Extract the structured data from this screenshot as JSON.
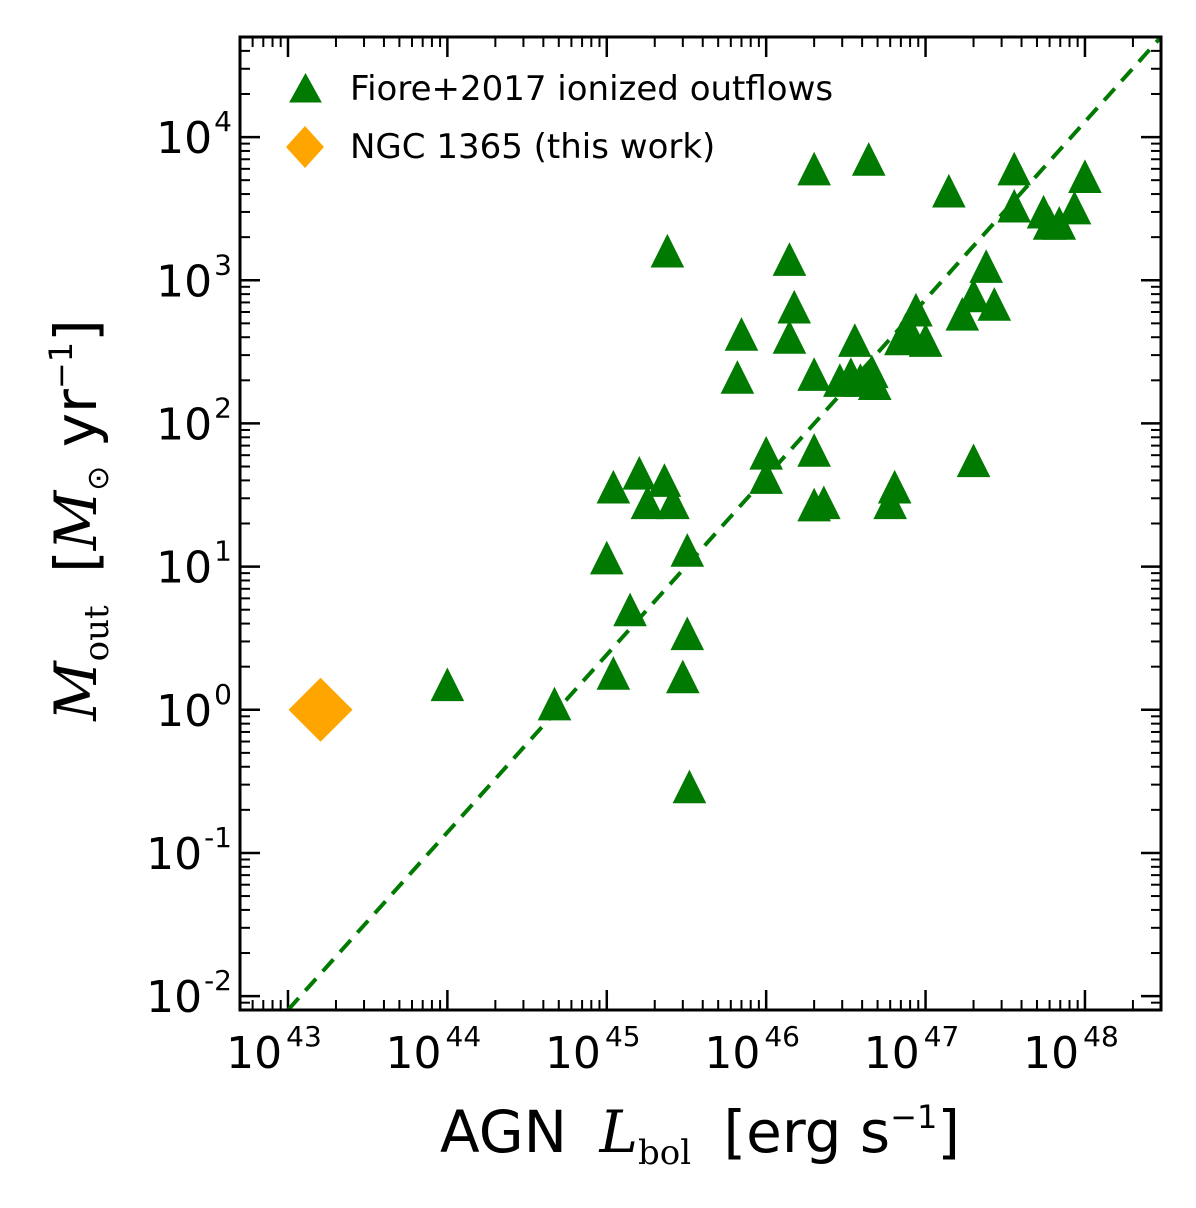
{
  "chart_data": {
    "type": "scatter",
    "xscale": "log",
    "yscale": "log",
    "xlim": [
      5e+42,
      3e+48
    ],
    "ylim": [
      0.008,
      50000
    ],
    "x_ticks": [
      {
        "base": "10",
        "exp": "43",
        "value": 1e+43
      },
      {
        "base": "10",
        "exp": "44",
        "value": 1e+44
      },
      {
        "base": "10",
        "exp": "45",
        "value": 1e+45
      },
      {
        "base": "10",
        "exp": "46",
        "value": 1e+46
      },
      {
        "base": "10",
        "exp": "47",
        "value": 1e+47
      },
      {
        "base": "10",
        "exp": "48",
        "value": 1e+48
      }
    ],
    "y_ticks": [
      {
        "base": "10",
        "exp": "-2",
        "value": 0.01
      },
      {
        "base": "10",
        "exp": "-1",
        "value": 0.1
      },
      {
        "base": "10",
        "exp": "0",
        "value": 1
      },
      {
        "base": "10",
        "exp": "1",
        "value": 10
      },
      {
        "base": "10",
        "exp": "2",
        "value": 100
      },
      {
        "base": "10",
        "exp": "3",
        "value": 1000
      },
      {
        "base": "10",
        "exp": "4",
        "value": 10000
      }
    ],
    "xlabel": {
      "prefix": "AGN",
      "sym": "L",
      "sub": "bol",
      "unit": "[erg s",
      "unit_exp": "−1",
      "close": "]"
    },
    "ylabel": {
      "sym": "M",
      "sub": "out",
      "unit_open": "[",
      "unit_sym": "M",
      "unit_sub": "⊙",
      "unit": " yr",
      "unit_exp": "−1",
      "close": "]"
    },
    "series": [
      {
        "name": "Fiore+2017 ionized outflows",
        "marker": "triangle",
        "color": "#007a00",
        "points": [
          [
            1e+44,
            1.5
          ],
          [
            4.7e+44,
            1.1
          ],
          [
            1.1e+45,
            1.8
          ],
          [
            1.4e+45,
            5.0
          ],
          [
            1e+45,
            11.5
          ],
          [
            1.1e+45,
            36
          ],
          [
            1.6e+45,
            45
          ],
          [
            1.8e+45,
            28
          ],
          [
            2.3e+45,
            40
          ],
          [
            2.6e+45,
            28
          ],
          [
            3.2e+45,
            13
          ],
          [
            3.2e+45,
            3.4
          ],
          [
            3e+45,
            1.7
          ],
          [
            3.3e+45,
            0.29
          ],
          [
            2.4e+45,
            1600
          ],
          [
            7e+45,
            420
          ],
          [
            6.6e+45,
            210
          ],
          [
            1e+46,
            62
          ],
          [
            1e+46,
            42
          ],
          [
            1.4e+46,
            1400
          ],
          [
            1.5e+46,
            650
          ],
          [
            1.4e+46,
            400
          ],
          [
            2e+46,
            6000
          ],
          [
            2e+46,
            220
          ],
          [
            2e+46,
            65
          ],
          [
            2e+46,
            27
          ],
          [
            2.3e+46,
            28
          ],
          [
            2.9e+46,
            200
          ],
          [
            3.4e+46,
            220
          ],
          [
            3.6e+46,
            380
          ],
          [
            3.9e+46,
            200
          ],
          [
            4.4e+46,
            7000
          ],
          [
            4.6e+46,
            230
          ],
          [
            4.8e+46,
            190
          ],
          [
            6e+46,
            28
          ],
          [
            6.4e+46,
            36
          ],
          [
            7e+46,
            390
          ],
          [
            7.5e+46,
            450
          ],
          [
            8.3e+46,
            400
          ],
          [
            8.7e+46,
            620
          ],
          [
            1e+47,
            380
          ],
          [
            1.4e+47,
            4200
          ],
          [
            1.7e+47,
            580
          ],
          [
            2e+47,
            780
          ],
          [
            2e+47,
            55
          ],
          [
            2.4e+47,
            1250
          ],
          [
            2.7e+47,
            680
          ],
          [
            3.6e+47,
            6000
          ],
          [
            3.6e+47,
            3300
          ],
          [
            5.5e+47,
            3000
          ],
          [
            6e+47,
            2500
          ],
          [
            6.9e+47,
            2500
          ],
          [
            8.6e+47,
            3200
          ],
          [
            1e+48,
            5300
          ]
        ]
      },
      {
        "name": "NGC 1365 (this work)",
        "marker": "diamond",
        "color": "#ffa500",
        "points": [
          [
            1.6e+43,
            1.0
          ]
        ]
      }
    ],
    "fit_line": {
      "style": "dashed",
      "color": "#007a00",
      "from": [
        1e+43,
        0.008
      ],
      "to": [
        3e+48,
        50000
      ]
    },
    "legend_position": "top-left"
  }
}
